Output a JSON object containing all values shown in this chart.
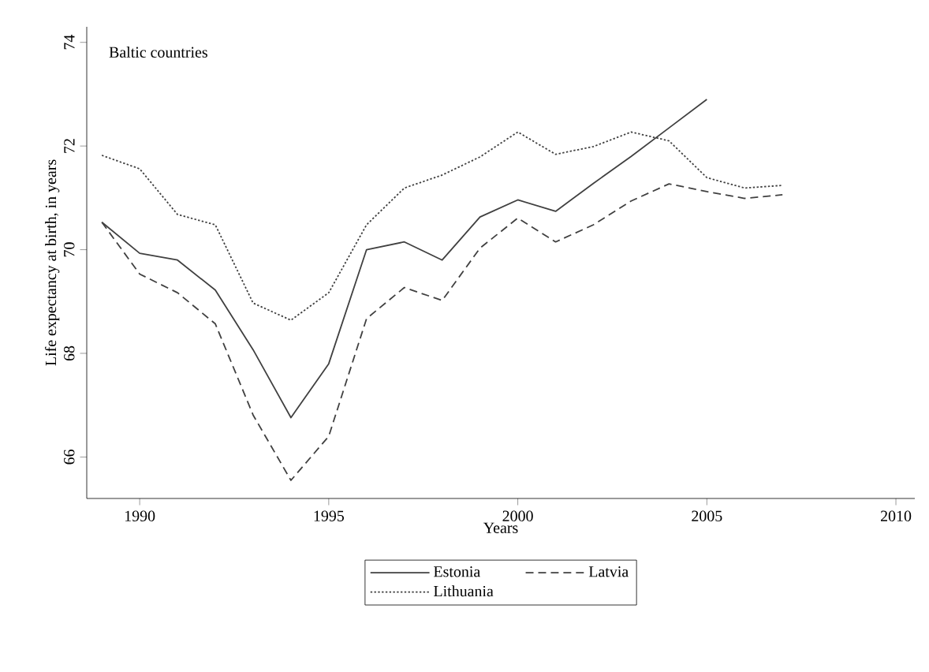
{
  "chart_data": {
    "type": "line",
    "xlabel": "Years",
    "ylabel": "Life expectancy at birth, in years",
    "annotations": [
      "Baltic countries"
    ],
    "x": [
      1989,
      1990,
      1991,
      1992,
      1993,
      1994,
      1995,
      1996,
      1997,
      1998,
      1999,
      2000,
      2001,
      2002,
      2003,
      2004,
      2005,
      2006,
      2007
    ],
    "series": [
      {
        "name": "Estonia",
        "color": "#404040",
        "line_style": "solid",
        "values": [
          70.53,
          69.93,
          69.8,
          69.22,
          68.07,
          66.76,
          67.8,
          70.0,
          70.15,
          69.8,
          70.63,
          70.96,
          70.74,
          71.28,
          71.8,
          72.35,
          72.9,
          null,
          null
        ]
      },
      {
        "name": "Latvia",
        "color": "#404040",
        "line_style": "dashed",
        "values": [
          70.53,
          69.53,
          69.17,
          68.57,
          66.81,
          65.55,
          66.4,
          68.67,
          69.27,
          69.02,
          70.03,
          70.61,
          70.15,
          70.48,
          70.94,
          71.27,
          71.12,
          70.99,
          71.06
        ]
      },
      {
        "name": "Lithuania",
        "color": "#404040",
        "line_style": "dotted",
        "values": [
          71.82,
          71.56,
          70.68,
          70.48,
          68.97,
          68.64,
          69.17,
          70.48,
          71.19,
          71.44,
          71.79,
          72.27,
          71.84,
          71.99,
          72.27,
          72.1,
          71.39,
          71.19,
          71.24
        ]
      }
    ],
    "xlim": [
      1988.6,
      2010.5
    ],
    "ylim": [
      65.2,
      74.3
    ],
    "xticks": [
      1990,
      1995,
      2000,
      2005,
      2010
    ],
    "yticks": [
      66,
      68,
      70,
      72,
      74
    ],
    "grid": false,
    "legend": "bottom",
    "marker": "none"
  }
}
